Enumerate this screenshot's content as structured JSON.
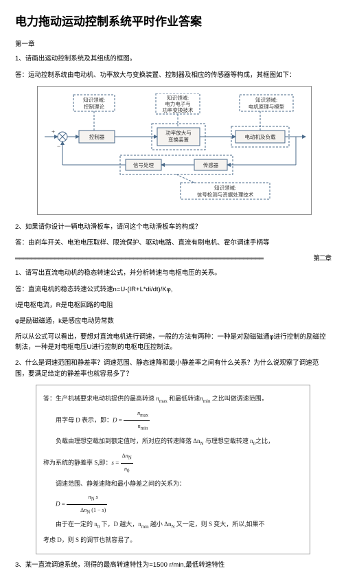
{
  "title": "电力拖动运动控制系统平时作业答案",
  "chapter1": "第一章",
  "q1": "1、请画出运动控制系统及其组成的框图。",
  "a1": "答：运动控制系统由电动机、功率放大与变换装置、控制器及相应的传感器等构成，其框图如下：",
  "diagram": {
    "topLeft": {
      "l1": "知识领域:",
      "l2": "控制理论"
    },
    "topMid": {
      "l1": "知识领域:",
      "l2": "电力电子与",
      "l3": "功率变换技术"
    },
    "topRight": {
      "l1": "知识领域:",
      "l2": "电机原理与模型"
    },
    "controller": "控制器",
    "amplifier": {
      "l1": "功率放大与",
      "l2": "变换装置"
    },
    "motor": "电动机及负载",
    "signal": "信号处理",
    "sensor": "传感器",
    "bottom": {
      "l1": "知识领域:",
      "l2": "信号检测与资据处理技术"
    },
    "colors": {
      "stroke": "#4a6a8a",
      "text": "#333",
      "bg": "#f5f3f0"
    }
  },
  "q2": "2、如果请你设计一辆电动滑板车，请问这个电动滑板车的构成？",
  "a2": "答：由刹车开关、电池电压取样、限流保护、驱动电路、直流有刷电机、霍尔调速手柄等",
  "sep": "═══════════════════════════════════════════════════════════════",
  "chapter2": "第二章",
  "q3": "1、请写出直流电动机的稳态转速公式，并分析转速与电枢电压的关系。",
  "a3": "答：直流电机的稳态转速公式转速n=U-(IR+L*di/dt)/Kφ,",
  "a3b": "I是电枢电流，R是电枢回路的电阻",
  "a3c": "φ是励磁磁通，k是感应电动势常数",
  "a3d": "所以从公式可以看出，要想对直流电机进行调速，一般的方法有两种：一种是对励磁磁通φ进行控制的励磁控制法，一种是对电枢电压U进行控制的电枢电压控制法。",
  "q4": "2、什么是调速范围和静差率？调速范围、静态速降和最小静差率之间有什么关系？为什么说观察了调速范围，要满足给定的静差率也就容易多了？",
  "math": {
    "l1a": "答：生产机械要求电动机提供的最高转速 ",
    "l1b": " 和最低转速",
    "l1c": " 之比叫做调速范围，",
    "l2a": "用字母 D 表示，即：",
    "l3": "负载由理想空载加到额定值时，所对应的转速降落 Δn<sub>N</sub> 与理想空载转速 n<sub>0</sub>之比，",
    "l4a": "称为系统的静差率 S,即：",
    "l5": "调速范围、静差速降和最小静差之间的关系为：",
    "l7": "由于在一定的 n<sub>0</sub> 下，D 越大，n<sub>min</sub> 越小 Δn<sub>N</sub> 又一定，则 S 变大，所以,如果不",
    "l8": "考虑 D，则 S 的调节也就容易了。"
  },
  "q5": "3、某一直流调速系统，测得的最高转速特性为=1500 r/min,最低转速特性"
}
